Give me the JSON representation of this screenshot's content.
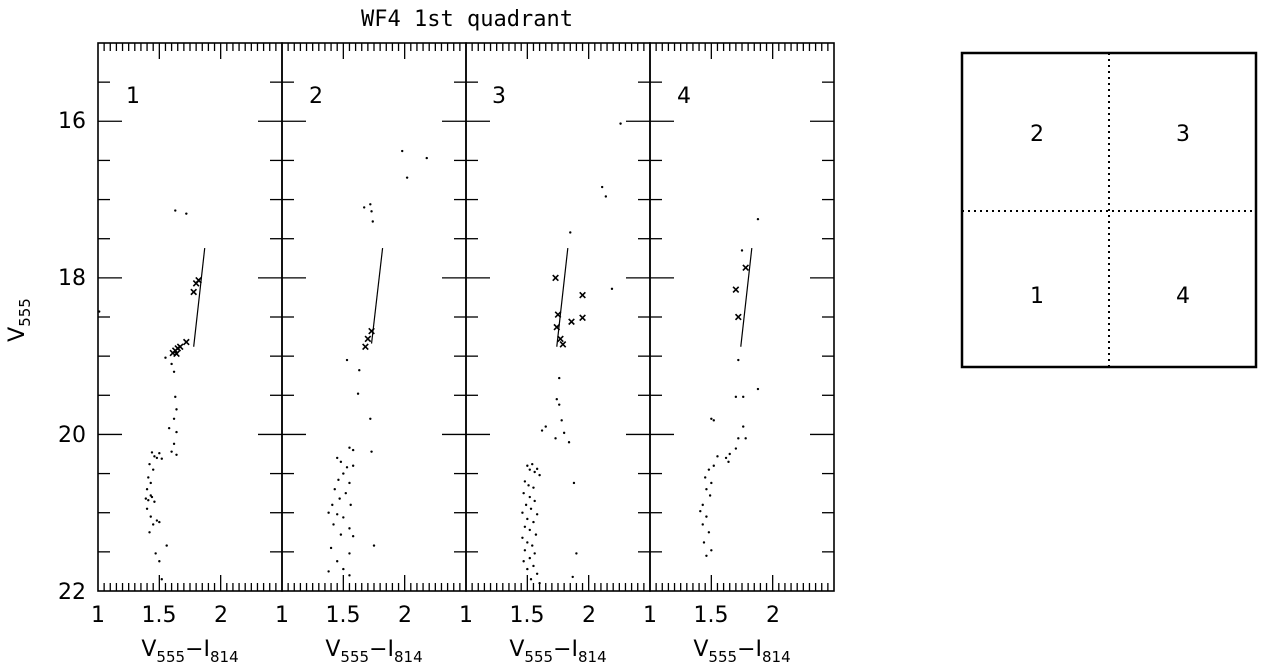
{
  "chart_data": {
    "type": "scatter",
    "title": "WF4 1st quadrant",
    "ylabel": {
      "main": "V",
      "sub": "555"
    },
    "xlabel": {
      "a": "V",
      "a_sub": "555",
      "minus": "−",
      "b": "I",
      "b_sub": "814"
    },
    "xlim": [
      1.0,
      2.5
    ],
    "ylim": [
      15.0,
      22.0
    ],
    "y_inverted": true,
    "x_tick_labels": [
      "1",
      "1.5",
      "2"
    ],
    "y_tick_labels": [
      "16",
      "18",
      "20",
      "22"
    ],
    "panels": [
      {
        "label": "1",
        "fit_line": [
          [
            1.78,
            18.88
          ],
          [
            1.87,
            17.62
          ]
        ],
        "crosses": [
          [
            1.61,
            18.96
          ],
          [
            1.63,
            18.93
          ],
          [
            1.65,
            18.9
          ],
          [
            1.64,
            18.97
          ],
          [
            1.67,
            18.88
          ],
          [
            1.72,
            18.82
          ],
          [
            1.78,
            18.18
          ],
          [
            1.8,
            18.07
          ],
          [
            1.82,
            18.03
          ]
        ],
        "points": [
          [
            1.01,
            18.43
          ],
          [
            1.63,
            17.14
          ],
          [
            1.72,
            17.18
          ],
          [
            1.55,
            19.02
          ],
          [
            1.6,
            19.1
          ],
          [
            1.62,
            19.2
          ],
          [
            1.63,
            19.52
          ],
          [
            1.64,
            19.68
          ],
          [
            1.62,
            19.8
          ],
          [
            1.58,
            19.92
          ],
          [
            1.64,
            19.97
          ],
          [
            1.62,
            20.12
          ],
          [
            1.6,
            20.22
          ],
          [
            1.64,
            20.26
          ],
          [
            1.44,
            20.23
          ],
          [
            1.46,
            20.28
          ],
          [
            1.48,
            20.3
          ],
          [
            1.5,
            20.24
          ],
          [
            1.52,
            20.31
          ],
          [
            1.42,
            20.38
          ],
          [
            1.45,
            20.45
          ],
          [
            1.41,
            20.55
          ],
          [
            1.43,
            20.62
          ],
          [
            1.4,
            20.7
          ],
          [
            1.43,
            20.78
          ],
          [
            1.39,
            20.82
          ],
          [
            1.41,
            20.84
          ],
          [
            1.44,
            20.8
          ],
          [
            1.46,
            20.86
          ],
          [
            1.4,
            20.95
          ],
          [
            1.43,
            21.05
          ],
          [
            1.48,
            21.1
          ],
          [
            1.45,
            21.15
          ],
          [
            1.42,
            21.25
          ],
          [
            1.5,
            21.12
          ],
          [
            1.56,
            21.42
          ],
          [
            1.47,
            21.52
          ],
          [
            1.5,
            21.62
          ],
          [
            1.52,
            21.85
          ]
        ]
      },
      {
        "label": "2",
        "fit_line": [
          [
            1.73,
            18.84
          ],
          [
            1.82,
            17.62
          ]
        ],
        "crosses": [
          [
            1.68,
            18.88
          ],
          [
            1.7,
            18.78
          ],
          [
            1.73,
            18.68
          ]
        ],
        "points": [
          [
            1.98,
            16.38
          ],
          [
            2.02,
            16.72
          ],
          [
            2.18,
            16.47
          ],
          [
            1.67,
            17.1
          ],
          [
            1.72,
            17.06
          ],
          [
            1.73,
            17.15
          ],
          [
            1.74,
            17.28
          ],
          [
            1.53,
            19.05
          ],
          [
            1.63,
            19.18
          ],
          [
            1.62,
            19.48
          ],
          [
            1.72,
            19.8
          ],
          [
            1.55,
            20.17
          ],
          [
            1.58,
            20.2
          ],
          [
            1.73,
            20.22
          ],
          [
            1.45,
            20.3
          ],
          [
            1.48,
            20.35
          ],
          [
            1.53,
            20.42
          ],
          [
            1.58,
            20.4
          ],
          [
            1.5,
            20.5
          ],
          [
            1.46,
            20.58
          ],
          [
            1.55,
            20.62
          ],
          [
            1.43,
            20.7
          ],
          [
            1.52,
            20.75
          ],
          [
            1.47,
            20.82
          ],
          [
            1.41,
            20.9
          ],
          [
            1.56,
            20.9
          ],
          [
            1.38,
            21.0
          ],
          [
            1.45,
            21.02
          ],
          [
            1.5,
            21.06
          ],
          [
            1.42,
            21.15
          ],
          [
            1.55,
            21.2
          ],
          [
            1.48,
            21.28
          ],
          [
            1.58,
            21.3
          ],
          [
            1.75,
            21.42
          ],
          [
            1.4,
            21.45
          ],
          [
            1.55,
            21.52
          ],
          [
            1.45,
            21.62
          ],
          [
            1.5,
            21.72
          ],
          [
            1.38,
            21.75
          ],
          [
            1.55,
            21.8
          ]
        ]
      },
      {
        "label": "3",
        "fit_line": [
          [
            1.74,
            18.88
          ],
          [
            1.83,
            17.62
          ]
        ],
        "crosses": [
          [
            1.73,
            18.0
          ],
          [
            1.75,
            18.47
          ],
          [
            1.74,
            18.63
          ],
          [
            1.77,
            18.78
          ],
          [
            1.79,
            18.85
          ],
          [
            1.86,
            18.56
          ],
          [
            1.95,
            18.22
          ],
          [
            1.95,
            18.51
          ]
        ],
        "points": [
          [
            2.26,
            16.03
          ],
          [
            2.11,
            16.84
          ],
          [
            2.14,
            16.96
          ],
          [
            1.85,
            17.42
          ],
          [
            2.19,
            18.14
          ],
          [
            1.76,
            19.28
          ],
          [
            1.74,
            19.55
          ],
          [
            1.76,
            19.62
          ],
          [
            1.78,
            19.82
          ],
          [
            1.8,
            19.98
          ],
          [
            1.62,
            19.95
          ],
          [
            1.65,
            19.9
          ],
          [
            1.73,
            20.05
          ],
          [
            1.84,
            20.1
          ],
          [
            1.88,
            20.62
          ],
          [
            1.5,
            20.4
          ],
          [
            1.52,
            20.45
          ],
          [
            1.54,
            20.38
          ],
          [
            1.56,
            20.48
          ],
          [
            1.58,
            20.44
          ],
          [
            1.6,
            20.52
          ],
          [
            1.48,
            20.6
          ],
          [
            1.51,
            20.65
          ],
          [
            1.55,
            20.68
          ],
          [
            1.47,
            20.75
          ],
          [
            1.52,
            20.8
          ],
          [
            1.56,
            20.85
          ],
          [
            1.49,
            20.9
          ],
          [
            1.53,
            20.95
          ],
          [
            1.46,
            21.0
          ],
          [
            1.58,
            21.02
          ],
          [
            1.5,
            21.08
          ],
          [
            1.55,
            21.12
          ],
          [
            1.48,
            21.18
          ],
          [
            1.52,
            21.22
          ],
          [
            1.57,
            21.28
          ],
          [
            1.46,
            21.32
          ],
          [
            1.5,
            21.38
          ],
          [
            1.54,
            21.42
          ],
          [
            1.48,
            21.48
          ],
          [
            1.56,
            21.52
          ],
          [
            1.52,
            21.58
          ],
          [
            1.47,
            21.62
          ],
          [
            1.55,
            21.68
          ],
          [
            1.5,
            21.72
          ],
          [
            1.58,
            21.78
          ],
          [
            1.53,
            21.85
          ],
          [
            1.6,
            21.9
          ],
          [
            1.87,
            21.82
          ],
          [
            1.9,
            21.52
          ]
        ]
      },
      {
        "label": "4",
        "fit_line": [
          [
            1.74,
            18.88
          ],
          [
            1.83,
            17.62
          ]
        ],
        "crosses": [
          [
            1.7,
            18.15
          ],
          [
            1.72,
            18.5
          ],
          [
            1.78,
            17.87
          ]
        ],
        "points": [
          [
            1.88,
            17.25
          ],
          [
            1.75,
            17.65
          ],
          [
            1.72,
            19.05
          ],
          [
            1.7,
            19.52
          ],
          [
            1.76,
            19.52
          ],
          [
            1.88,
            19.42
          ],
          [
            1.5,
            19.8
          ],
          [
            1.52,
            19.82
          ],
          [
            1.76,
            19.9
          ],
          [
            1.78,
            20.05
          ],
          [
            1.72,
            20.05
          ],
          [
            1.7,
            20.18
          ],
          [
            1.65,
            20.25
          ],
          [
            1.62,
            20.3
          ],
          [
            1.64,
            20.35
          ],
          [
            1.55,
            20.28
          ],
          [
            1.52,
            20.4
          ],
          [
            1.48,
            20.45
          ],
          [
            1.45,
            20.55
          ],
          [
            1.5,
            20.62
          ],
          [
            1.46,
            20.7
          ],
          [
            1.49,
            20.78
          ],
          [
            1.43,
            20.9
          ],
          [
            1.41,
            20.98
          ],
          [
            1.46,
            21.05
          ],
          [
            1.43,
            21.15
          ],
          [
            1.48,
            21.25
          ],
          [
            1.44,
            21.38
          ],
          [
            1.5,
            21.48
          ],
          [
            1.46,
            21.55
          ]
        ]
      }
    ]
  },
  "quadrant_map": {
    "cells": [
      {
        "label": "2"
      },
      {
        "label": "3"
      },
      {
        "label": "1"
      },
      {
        "label": "4"
      }
    ]
  }
}
